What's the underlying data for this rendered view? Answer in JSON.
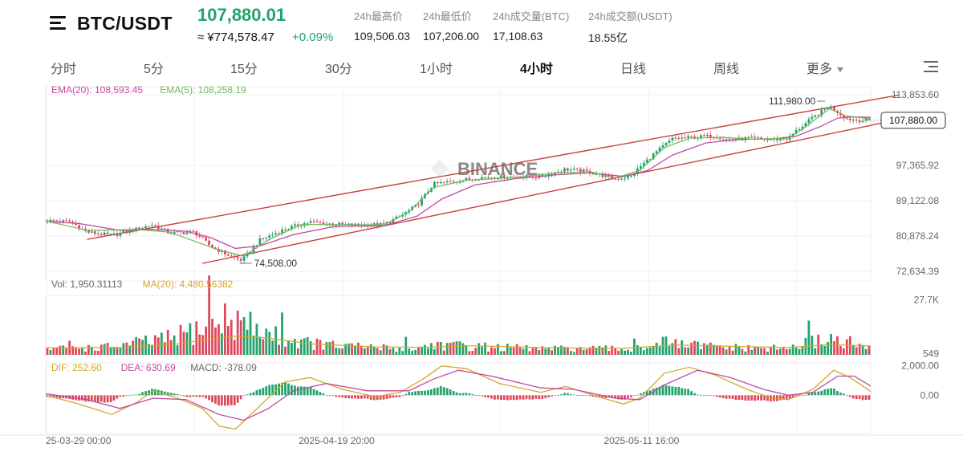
{
  "header": {
    "pair": "BTC/USDT",
    "last_price": "107,880.01",
    "approx_fiat": "≈ ¥774,578.47",
    "change_pct": "+0.09%",
    "stats": [
      {
        "label": "24h最高价",
        "value": "109,506.03"
      },
      {
        "label": "24h最低价",
        "value": "107,206.00"
      },
      {
        "label": "24h成交量(BTC)",
        "value": "17,108.63"
      },
      {
        "label": "24h成交额(USDT)",
        "value": "18.55亿"
      }
    ],
    "up_color": "#22a36b",
    "down_color": "#e0475b"
  },
  "tabs": [
    {
      "label": "分时",
      "active": false
    },
    {
      "label": "5分",
      "active": false
    },
    {
      "label": "15分",
      "active": false
    },
    {
      "label": "30分",
      "active": false
    },
    {
      "label": "1小时",
      "active": false
    },
    {
      "label": "4小时",
      "active": true
    },
    {
      "label": "日线",
      "active": false
    },
    {
      "label": "周线",
      "active": false
    },
    {
      "label": "更多",
      "active": false
    }
  ],
  "icons": {
    "menu": "menu-icon",
    "more_caret": "chevron-down-icon",
    "settings": "chart-settings-icon",
    "watermark": "binance-logo-watermark"
  },
  "chart_data": {
    "type": "line",
    "watermark": "BINANCE",
    "price_panel": {
      "legend": [
        {
          "text": "EMA(20): 108,593.45",
          "color": "#c04aa0"
        },
        {
          "text": "EMA(5): 108,258.19",
          "color": "#6db85a"
        }
      ],
      "y_ticks": [
        113853.6,
        97365.92,
        89122.08,
        80878.24,
        72634.39
      ],
      "y_tick_labels": [
        "113,853.60",
        "97,365.92",
        "89,122.08",
        "80,878.24",
        "72,634.39"
      ],
      "ylim": [
        72634.39,
        113853.6
      ],
      "current_price": 107880.0,
      "current_price_label": "107,880.00",
      "annotations": [
        {
          "text": "111,980.00",
          "x": 0.937,
          "y": 111980.0
        },
        {
          "text": "74,508.00",
          "x": 0.238,
          "y": 74508.0
        }
      ],
      "channel": {
        "upper": [
          {
            "x": 0.05,
            "y": 80100
          },
          {
            "x": 1.0,
            "y": 112600
          }
        ],
        "lower": [
          {
            "x": 0.19,
            "y": 74500
          },
          {
            "x": 1.0,
            "y": 106700
          }
        ]
      },
      "price_path": [
        {
          "x": 0.0,
          "y": 84500
        },
        {
          "x": 0.03,
          "y": 84200
        },
        {
          "x": 0.05,
          "y": 81800
        },
        {
          "x": 0.08,
          "y": 81000
        },
        {
          "x": 0.11,
          "y": 82500
        },
        {
          "x": 0.13,
          "y": 83500
        },
        {
          "x": 0.15,
          "y": 81600
        },
        {
          "x": 0.18,
          "y": 81800
        },
        {
          "x": 0.2,
          "y": 78500
        },
        {
          "x": 0.22,
          "y": 76500
        },
        {
          "x": 0.238,
          "y": 75200
        },
        {
          "x": 0.26,
          "y": 80000
        },
        {
          "x": 0.29,
          "y": 82500
        },
        {
          "x": 0.32,
          "y": 84200
        },
        {
          "x": 0.35,
          "y": 83600
        },
        {
          "x": 0.38,
          "y": 83400
        },
        {
          "x": 0.41,
          "y": 83600
        },
        {
          "x": 0.43,
          "y": 85500
        },
        {
          "x": 0.45,
          "y": 88000
        },
        {
          "x": 0.47,
          "y": 93000
        },
        {
          "x": 0.5,
          "y": 93800
        },
        {
          "x": 0.53,
          "y": 94600
        },
        {
          "x": 0.57,
          "y": 94700
        },
        {
          "x": 0.6,
          "y": 94700
        },
        {
          "x": 0.63,
          "y": 96500
        },
        {
          "x": 0.66,
          "y": 95800
        },
        {
          "x": 0.69,
          "y": 94200
        },
        {
          "x": 0.71,
          "y": 94800
        },
        {
          "x": 0.72,
          "y": 97000
        },
        {
          "x": 0.74,
          "y": 100500
        },
        {
          "x": 0.76,
          "y": 103600
        },
        {
          "x": 0.79,
          "y": 104000
        },
        {
          "x": 0.81,
          "y": 104200
        },
        {
          "x": 0.83,
          "y": 103200
        },
        {
          "x": 0.85,
          "y": 103700
        },
        {
          "x": 0.88,
          "y": 103400
        },
        {
          "x": 0.9,
          "y": 103600
        },
        {
          "x": 0.91,
          "y": 105500
        },
        {
          "x": 0.93,
          "y": 108500
        },
        {
          "x": 0.95,
          "y": 111200
        },
        {
          "x": 0.96,
          "y": 109800
        },
        {
          "x": 0.97,
          "y": 108300
        },
        {
          "x": 0.985,
          "y": 107900
        },
        {
          "x": 1.0,
          "y": 107880
        }
      ],
      "ema20_path": [
        {
          "x": 0.0,
          "y": 84300
        },
        {
          "x": 0.04,
          "y": 83800
        },
        {
          "x": 0.09,
          "y": 82200
        },
        {
          "x": 0.13,
          "y": 82400
        },
        {
          "x": 0.17,
          "y": 82000
        },
        {
          "x": 0.2,
          "y": 80500
        },
        {
          "x": 0.23,
          "y": 78000
        },
        {
          "x": 0.26,
          "y": 78600
        },
        {
          "x": 0.3,
          "y": 81200
        },
        {
          "x": 0.35,
          "y": 83100
        },
        {
          "x": 0.41,
          "y": 83300
        },
        {
          "x": 0.45,
          "y": 85500
        },
        {
          "x": 0.48,
          "y": 89500
        },
        {
          "x": 0.52,
          "y": 92800
        },
        {
          "x": 0.57,
          "y": 94300
        },
        {
          "x": 0.62,
          "y": 95200
        },
        {
          "x": 0.66,
          "y": 95600
        },
        {
          "x": 0.7,
          "y": 94800
        },
        {
          "x": 0.73,
          "y": 96200
        },
        {
          "x": 0.76,
          "y": 99800
        },
        {
          "x": 0.8,
          "y": 102600
        },
        {
          "x": 0.84,
          "y": 103500
        },
        {
          "x": 0.88,
          "y": 103500
        },
        {
          "x": 0.91,
          "y": 104200
        },
        {
          "x": 0.94,
          "y": 106500
        },
        {
          "x": 0.96,
          "y": 108400
        },
        {
          "x": 0.98,
          "y": 108700
        },
        {
          "x": 1.0,
          "y": 108593
        }
      ],
      "ema5_path": [
        {
          "x": 0.0,
          "y": 84400
        },
        {
          "x": 0.05,
          "y": 82200
        },
        {
          "x": 0.11,
          "y": 82400
        },
        {
          "x": 0.15,
          "y": 81800
        },
        {
          "x": 0.21,
          "y": 77600
        },
        {
          "x": 0.24,
          "y": 76200
        },
        {
          "x": 0.27,
          "y": 80000
        },
        {
          "x": 0.31,
          "y": 83600
        },
        {
          "x": 0.36,
          "y": 83500
        },
        {
          "x": 0.41,
          "y": 83500
        },
        {
          "x": 0.44,
          "y": 86500
        },
        {
          "x": 0.47,
          "y": 92200
        },
        {
          "x": 0.51,
          "y": 93900
        },
        {
          "x": 0.57,
          "y": 94600
        },
        {
          "x": 0.62,
          "y": 95600
        },
        {
          "x": 0.66,
          "y": 95900
        },
        {
          "x": 0.69,
          "y": 94400
        },
        {
          "x": 0.72,
          "y": 96200
        },
        {
          "x": 0.75,
          "y": 101500
        },
        {
          "x": 0.78,
          "y": 103700
        },
        {
          "x": 0.82,
          "y": 103900
        },
        {
          "x": 0.86,
          "y": 103500
        },
        {
          "x": 0.9,
          "y": 103700
        },
        {
          "x": 0.92,
          "y": 106200
        },
        {
          "x": 0.95,
          "y": 110600
        },
        {
          "x": 0.97,
          "y": 108900
        },
        {
          "x": 1.0,
          "y": 108258
        }
      ]
    },
    "volume_panel": {
      "legend": [
        {
          "text": "Vol: 1,950.31113",
          "color": "#666666"
        },
        {
          "text": "MA(20): 4,480.56382",
          "color": "#d6a62a"
        }
      ],
      "y_tick_labels": [
        "27.7K",
        "549"
      ],
      "y_ticks": [
        27700,
        549
      ],
      "ylim": [
        0,
        30000
      ],
      "profile": [
        {
          "x": 0.0,
          "v": 3000
        },
        {
          "x": 0.08,
          "v": 4000
        },
        {
          "x": 0.12,
          "v": 6500
        },
        {
          "x": 0.15,
          "v": 8000
        },
        {
          "x": 0.18,
          "v": 12000
        },
        {
          "x": 0.2,
          "v": 15000
        },
        {
          "x": 0.22,
          "v": 18000
        },
        {
          "x": 0.24,
          "v": 16000
        },
        {
          "x": 0.26,
          "v": 12000
        },
        {
          "x": 0.3,
          "v": 7000
        },
        {
          "x": 0.35,
          "v": 4500
        },
        {
          "x": 0.45,
          "v": 3000
        },
        {
          "x": 0.47,
          "v": 5500
        },
        {
          "x": 0.5,
          "v": 4500
        },
        {
          "x": 0.6,
          "v": 3000
        },
        {
          "x": 0.72,
          "v": 3000
        },
        {
          "x": 0.74,
          "v": 6500
        },
        {
          "x": 0.77,
          "v": 5000
        },
        {
          "x": 0.85,
          "v": 3200
        },
        {
          "x": 0.9,
          "v": 3200
        },
        {
          "x": 0.93,
          "v": 6500
        },
        {
          "x": 0.95,
          "v": 8500
        },
        {
          "x": 0.98,
          "v": 5500
        },
        {
          "x": 1.0,
          "v": 2500
        }
      ],
      "ma20_path": [
        {
          "x": 0.0,
          "v": 3500
        },
        {
          "x": 0.1,
          "v": 3800
        },
        {
          "x": 0.16,
          "v": 5500
        },
        {
          "x": 0.2,
          "v": 8000
        },
        {
          "x": 0.23,
          "v": 9500
        },
        {
          "x": 0.27,
          "v": 8500
        },
        {
          "x": 0.32,
          "v": 5500
        },
        {
          "x": 0.4,
          "v": 4000
        },
        {
          "x": 0.46,
          "v": 3800
        },
        {
          "x": 0.52,
          "v": 4600
        },
        {
          "x": 0.62,
          "v": 3500
        },
        {
          "x": 0.7,
          "v": 3300
        },
        {
          "x": 0.76,
          "v": 5000
        },
        {
          "x": 0.84,
          "v": 4200
        },
        {
          "x": 0.9,
          "v": 3700
        },
        {
          "x": 0.95,
          "v": 5200
        },
        {
          "x": 1.0,
          "v": 4480
        }
      ]
    },
    "macd_panel": {
      "legend": [
        {
          "text": "DIF: 252.60",
          "color": "#d6a62a"
        },
        {
          "text": "DEA: 630.69",
          "color": "#c04aa0"
        },
        {
          "text": "MACD: -378.09",
          "color": "#666666"
        }
      ],
      "y_tick_labels": [
        "2,000.00",
        "0.00"
      ],
      "y_ticks": [
        2000,
        0
      ],
      "ylim": [
        -2600,
        2200
      ],
      "dif_path": [
        {
          "x": 0.0,
          "y": 0
        },
        {
          "x": 0.04,
          "y": -600
        },
        {
          "x": 0.08,
          "y": -1300
        },
        {
          "x": 0.11,
          "y": -500
        },
        {
          "x": 0.13,
          "y": 300
        },
        {
          "x": 0.16,
          "y": -200
        },
        {
          "x": 0.19,
          "y": -900
        },
        {
          "x": 0.21,
          "y": -2100
        },
        {
          "x": 0.23,
          "y": -2300
        },
        {
          "x": 0.26,
          "y": -700
        },
        {
          "x": 0.29,
          "y": 900
        },
        {
          "x": 0.32,
          "y": 1200
        },
        {
          "x": 0.36,
          "y": 400
        },
        {
          "x": 0.4,
          "y": -100
        },
        {
          "x": 0.43,
          "y": 200
        },
        {
          "x": 0.46,
          "y": 1200
        },
        {
          "x": 0.48,
          "y": 2000
        },
        {
          "x": 0.51,
          "y": 1800
        },
        {
          "x": 0.55,
          "y": 800
        },
        {
          "x": 0.6,
          "y": 200
        },
        {
          "x": 0.63,
          "y": 600
        },
        {
          "x": 0.67,
          "y": -100
        },
        {
          "x": 0.7,
          "y": -600
        },
        {
          "x": 0.72,
          "y": -200
        },
        {
          "x": 0.75,
          "y": 1500
        },
        {
          "x": 0.78,
          "y": 1900
        },
        {
          "x": 0.81,
          "y": 1400
        },
        {
          "x": 0.85,
          "y": 400
        },
        {
          "x": 0.88,
          "y": -200
        },
        {
          "x": 0.9,
          "y": -300
        },
        {
          "x": 0.93,
          "y": 400
        },
        {
          "x": 0.955,
          "y": 1700
        },
        {
          "x": 0.975,
          "y": 1200
        },
        {
          "x": 1.0,
          "y": 253
        }
      ],
      "dea_path": [
        {
          "x": 0.0,
          "y": 100
        },
        {
          "x": 0.05,
          "y": -300
        },
        {
          "x": 0.09,
          "y": -900
        },
        {
          "x": 0.13,
          "y": -200
        },
        {
          "x": 0.17,
          "y": -300
        },
        {
          "x": 0.21,
          "y": -1300
        },
        {
          "x": 0.24,
          "y": -1700
        },
        {
          "x": 0.27,
          "y": -900
        },
        {
          "x": 0.3,
          "y": 300
        },
        {
          "x": 0.34,
          "y": 800
        },
        {
          "x": 0.39,
          "y": 300
        },
        {
          "x": 0.44,
          "y": 300
        },
        {
          "x": 0.47,
          "y": 1100
        },
        {
          "x": 0.5,
          "y": 1700
        },
        {
          "x": 0.54,
          "y": 1300
        },
        {
          "x": 0.6,
          "y": 500
        },
        {
          "x": 0.64,
          "y": 400
        },
        {
          "x": 0.69,
          "y": -200
        },
        {
          "x": 0.72,
          "y": -300
        },
        {
          "x": 0.75,
          "y": 700
        },
        {
          "x": 0.79,
          "y": 1700
        },
        {
          "x": 0.83,
          "y": 1200
        },
        {
          "x": 0.87,
          "y": 400
        },
        {
          "x": 0.9,
          "y": 0
        },
        {
          "x": 0.93,
          "y": 200
        },
        {
          "x": 0.96,
          "y": 1300
        },
        {
          "x": 0.98,
          "y": 1300
        },
        {
          "x": 1.0,
          "y": 631
        }
      ]
    },
    "x_tick_labels": [
      "25-03-29 00:00",
      "2025-04-19 20:00",
      "2025-05-11 16:00"
    ],
    "x_tick_pos": [
      0.0,
      0.36,
      0.73
    ],
    "grid": true,
    "colors": {
      "up": "#22a36b",
      "down": "#e0475b",
      "channel": "#c9423f",
      "ema20": "#c04aa0",
      "ema5": "#6db85a",
      "ma20": "#d6a62a",
      "dif": "#d6a62a",
      "dea": "#c04aa0"
    }
  }
}
